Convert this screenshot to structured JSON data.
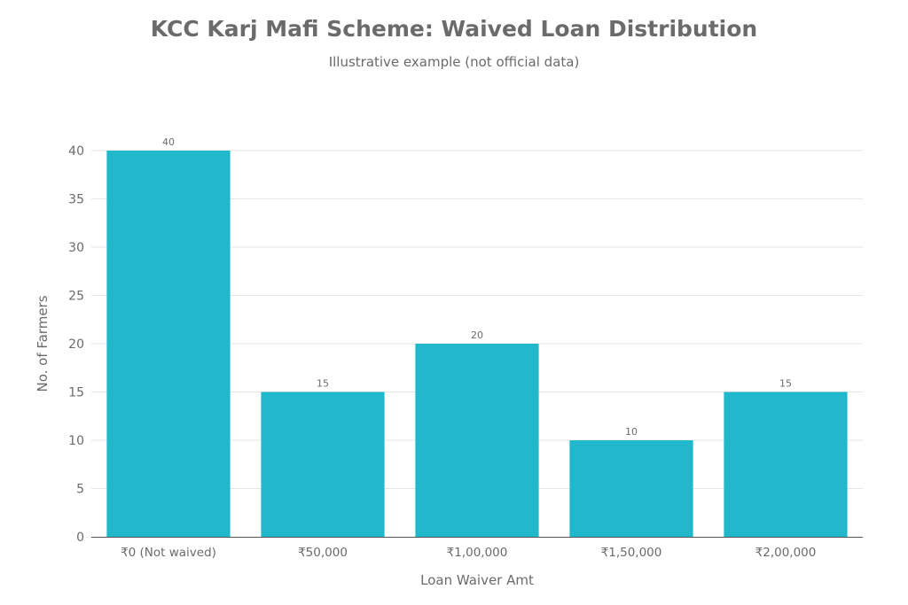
{
  "chart_data": {
    "type": "bar",
    "title": "KCC Karj Mafi Scheme: Waived Loan Distribution",
    "subtitle": "Illustrative example (not official data)",
    "xlabel": "Loan Waiver Amt",
    "ylabel": "No. of Farmers",
    "categories": [
      "₹0 (Not waived)",
      "₹50,000",
      "₹1,00,000",
      "₹1,50,000",
      "₹2,00,000"
    ],
    "values": [
      40,
      15,
      20,
      10,
      15
    ],
    "ylim": [
      0,
      40
    ],
    "yticks": [
      0,
      5,
      10,
      15,
      20,
      25,
      30,
      35,
      40
    ],
    "grid": true,
    "legend": "none",
    "bar_color": "#21b8cc"
  }
}
